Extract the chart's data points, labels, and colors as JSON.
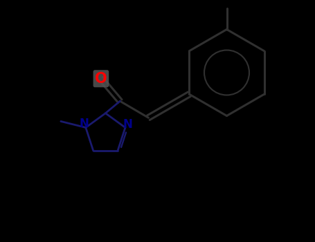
{
  "background_color": "#000000",
  "bond_color": "#303030",
  "imidazole_bond_color": "#1a1a6e",
  "nitrogen_color": "#00008b",
  "oxygen_color": "#ff0000",
  "oxygen_bg": "#555555",
  "lw": 2.2,
  "lw_imid": 2.0,
  "figsize": [
    4.55,
    3.5
  ],
  "dpi": 100,
  "xlim": [
    0,
    9.1
  ],
  "ylim": [
    0,
    7.0
  ]
}
